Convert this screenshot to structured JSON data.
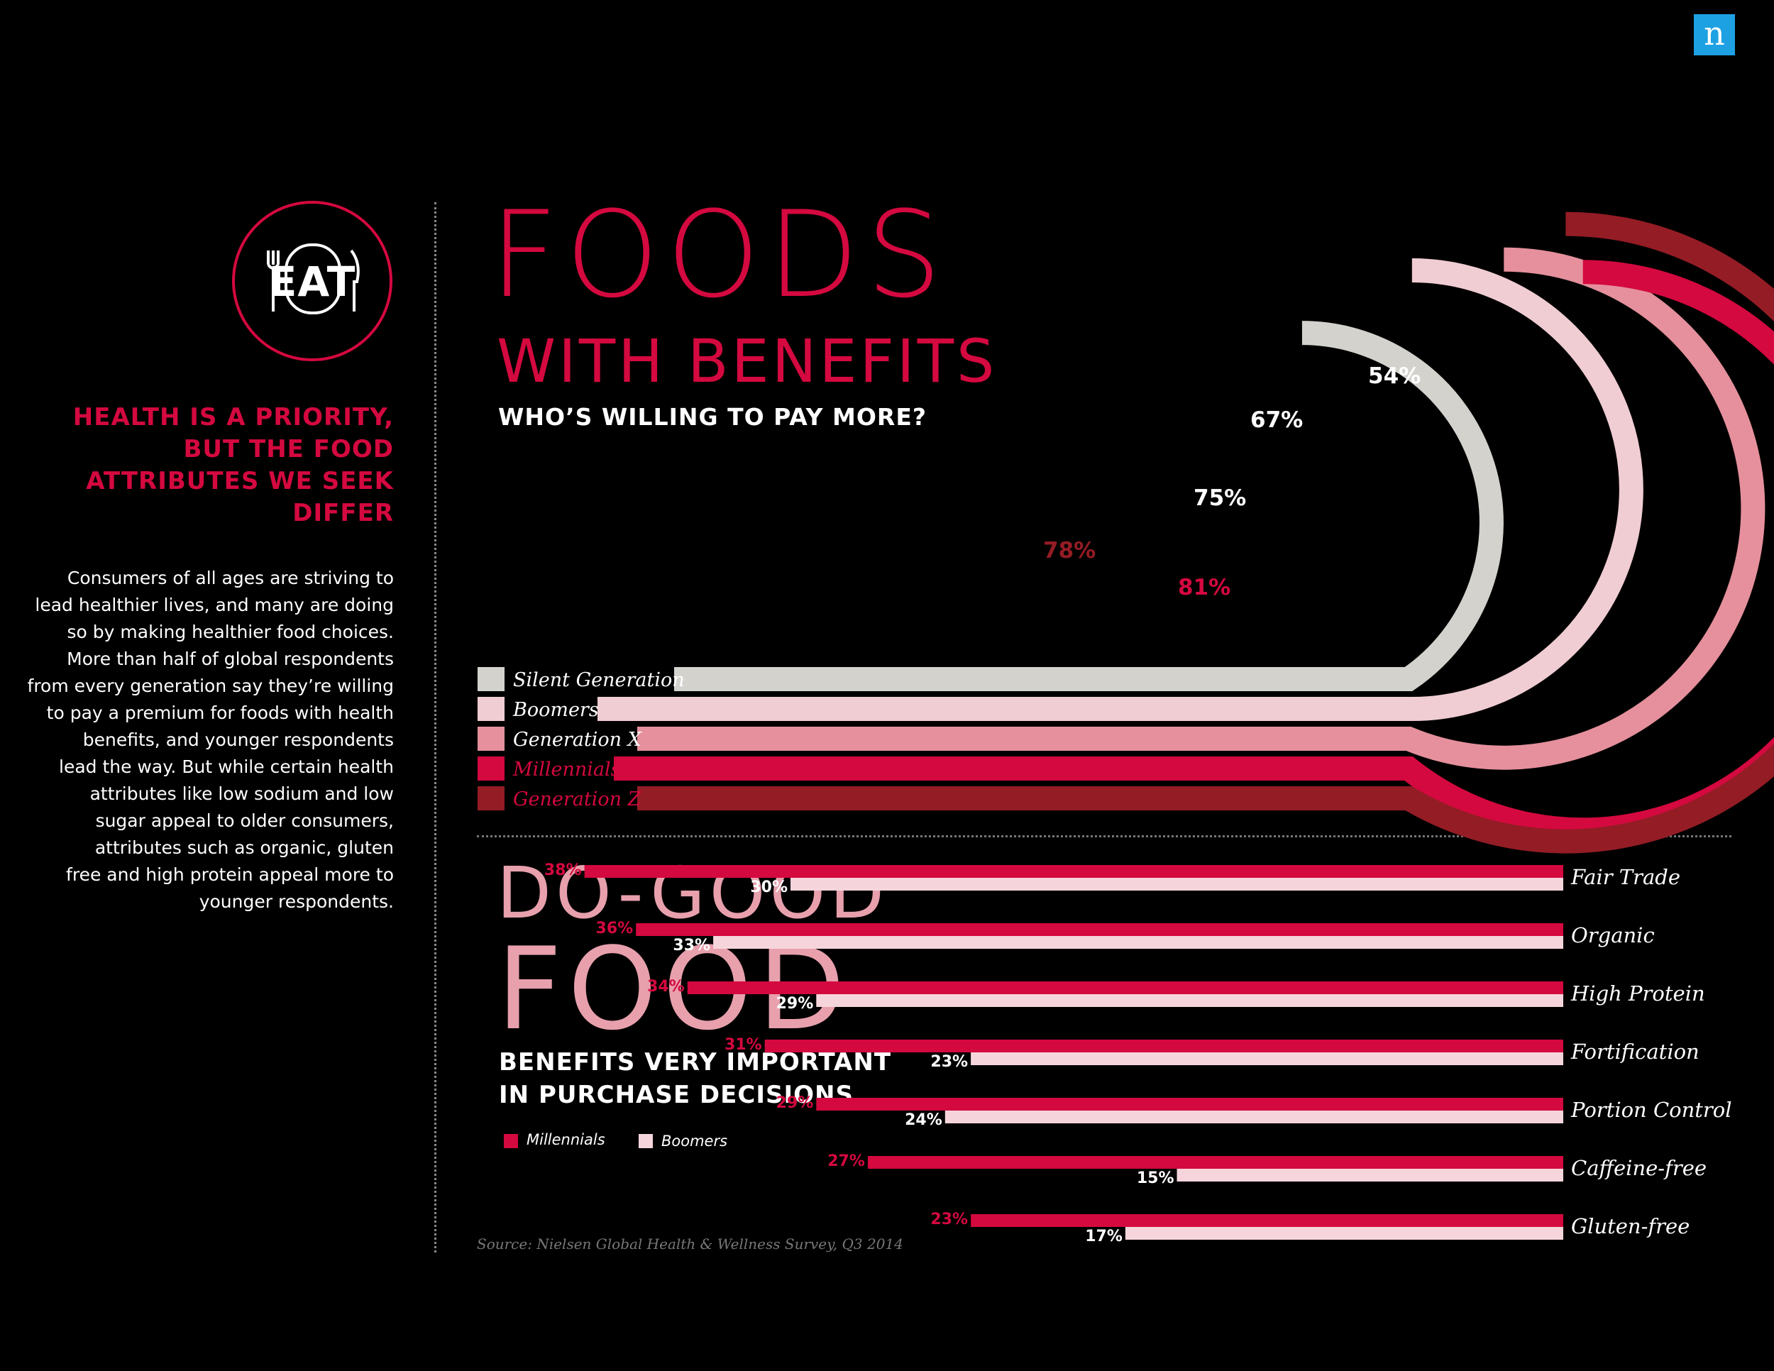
{
  "logo": {
    "letter": "n"
  },
  "eat_badge": {
    "label": "EAT"
  },
  "left": {
    "heading": [
      "HEALTH IS A PRIORITY,",
      "BUT THE FOOD",
      "ATTRIBUTES WE SEEK",
      "DIFFER"
    ],
    "body": [
      "Consumers of all ages are striving to",
      "lead healthier lives, and many are doing",
      "so by making healthier food choices.",
      "More than half of global respondents",
      "from every generation say they’re willing",
      "to pay a premium for foods with health",
      "benefits, and younger respondents",
      "lead the way. But while certain health",
      "attributes like low sodium and low",
      "sugar appeal to older consumers,",
      "attributes such as organic, gluten",
      "free and high protein appeal more to",
      "younger respondents."
    ]
  },
  "titles": {
    "foods": "FOODS",
    "with_benefits": "WITH BENEFITS",
    "who_sub": "WHO’S WILLING TO PAY MORE?",
    "do_good": "DO-GOOD",
    "food": "FOOD",
    "bvi_line1": "BENEFITS VERY IMPORTANT",
    "bvi_line2": "IN PURCHASE DECISIONS"
  },
  "legend": {
    "millennials": "Millennials",
    "boomers": "Boomers"
  },
  "source": "Source: Nielsen Global Health & Wellness Survey, Q3 2014",
  "colors": {
    "silent": "#d4d2cd",
    "boomers": "#f0cdd3",
    "genx": "#e5909c",
    "millennials": "#d4093f",
    "genz": "#941c25",
    "mill_bar": "#d4093f",
    "boom_bar": "#f5d5db"
  },
  "chart_data": [
    {
      "type": "bar",
      "title": "WHO’S WILLING TO PAY MORE?",
      "categories": [
        "Silent Generation",
        "Boomers",
        "Generation X",
        "Millennials",
        "Generation Z"
      ],
      "values": [
        54,
        67,
        75,
        81,
        78
      ],
      "value_labels": [
        "54%",
        "67%",
        "75%",
        "81%",
        "78%"
      ],
      "unit": "%"
    },
    {
      "type": "bar",
      "title": "BENEFITS VERY IMPORTANT IN PURCHASE DECISIONS",
      "categories": [
        "Fair Trade",
        "Organic",
        "High Protein",
        "Fortification",
        "Portion Control",
        "Caffeine-free",
        "Gluten-free"
      ],
      "series": [
        {
          "name": "Millennials",
          "values": [
            38,
            36,
            34,
            31,
            29,
            27,
            23
          ],
          "labels": [
            "38%",
            "36%",
            "34%",
            "31%",
            "29%",
            "27%",
            "23%"
          ]
        },
        {
          "name": "Boomers",
          "values": [
            30,
            33,
            29,
            23,
            24,
            15,
            17
          ],
          "labels": [
            "30%",
            "33%",
            "29%",
            "23%",
            "24%",
            "15%",
            "17%"
          ]
        }
      ],
      "unit": "%"
    }
  ]
}
